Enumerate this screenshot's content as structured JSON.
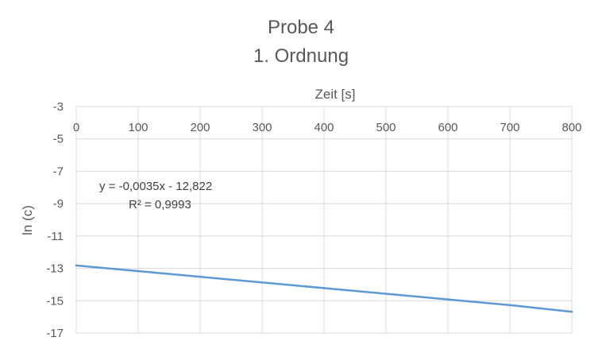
{
  "chart_data": {
    "type": "line",
    "title": [
      "Probe 4",
      "1. Ordnung"
    ],
    "xlabel": "Zeit [s]",
    "ylabel": "ln (c)",
    "xlim": [
      0,
      800
    ],
    "ylim": [
      -17,
      -3
    ],
    "xticks": [
      0,
      100,
      200,
      300,
      400,
      500,
      600,
      700,
      800
    ],
    "yticks": [
      -3,
      -5,
      -7,
      -9,
      -11,
      -13,
      -15,
      -17
    ],
    "x_axis_position": "top",
    "grid": true,
    "colors": {
      "series": "#5b9bd5",
      "grid": "#d9d9d9",
      "text": "#595959"
    },
    "series": [
      {
        "x": [
          0,
          100,
          200,
          300,
          400,
          500,
          600,
          700,
          800
        ],
        "values": [
          -12.82,
          -13.17,
          -13.52,
          -13.87,
          -14.22,
          -14.57,
          -14.92,
          -15.27,
          -15.68
        ]
      }
    ],
    "trendline": {
      "equation": "y = -0,0035x - 12,822",
      "r2": "R² = 0,9993"
    }
  }
}
